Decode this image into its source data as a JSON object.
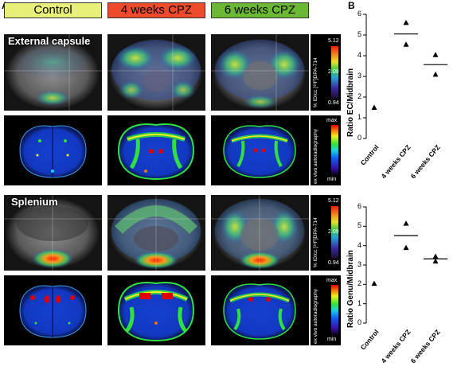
{
  "panels": {
    "a": "A",
    "b": "B"
  },
  "headers": [
    {
      "label": "Control",
      "color": "#e8f07a"
    },
    {
      "label": "4 weeks CPZ",
      "color": "#ee4a2c"
    },
    {
      "label": "6 weeks CPZ",
      "color": "#6ab834"
    }
  ],
  "sections": [
    {
      "region": "External capsule",
      "pet_colorbar": {
        "max": "5.12",
        "mid": "2.09",
        "min": "0.94",
        "label": "% ID/cc [¹⁸F]DPA-714"
      },
      "ar_colorbar": {
        "max": "max",
        "min": "min",
        "label": "ex vivo autoradiography"
      }
    },
    {
      "region": "Splenium",
      "pet_colorbar": {
        "max": "5.12",
        "mid": "2.09",
        "min": "0.94",
        "label": "% ID/cc [¹⁸F]DPA-714"
      },
      "ar_colorbar": {
        "max": "max",
        "min": "min",
        "label": "ex vivo autoradiography"
      }
    }
  ],
  "chart_data": [
    {
      "type": "scatter",
      "ylabel": "Ratio EC/Midbrain",
      "ylim": [
        0,
        6
      ],
      "yticks": [
        "0",
        "1",
        "2",
        "3",
        "4",
        "5",
        "6"
      ],
      "categories": [
        "Control",
        "4 weeks CPZ",
        "6 weeks CPZ"
      ],
      "points": [
        {
          "cat": 0,
          "y": 1.5
        },
        {
          "cat": 1,
          "y": 5.6
        },
        {
          "cat": 1,
          "y": 4.55
        },
        {
          "cat": 2,
          "y": 4.05
        },
        {
          "cat": 2,
          "y": 3.1
        }
      ],
      "means": [
        {
          "cat": 1,
          "y": 5.05
        },
        {
          "cat": 2,
          "y": 3.57
        }
      ]
    },
    {
      "type": "scatter",
      "ylabel": "Ratio Genu/Midbrain",
      "ylim": [
        0,
        6
      ],
      "yticks": [
        "0",
        "1",
        "2",
        "3",
        "4",
        "5",
        "6"
      ],
      "categories": [
        "Control",
        "4 weeks CPZ",
        "6 weeks CPZ"
      ],
      "points": [
        {
          "cat": 0,
          "y": 2.05
        },
        {
          "cat": 1,
          "y": 5.15
        },
        {
          "cat": 1,
          "y": 3.9
        },
        {
          "cat": 2,
          "y": 3.45
        },
        {
          "cat": 2,
          "y": 3.2
        }
      ],
      "means": [
        {
          "cat": 1,
          "y": 4.52
        },
        {
          "cat": 2,
          "y": 3.32
        }
      ]
    }
  ]
}
